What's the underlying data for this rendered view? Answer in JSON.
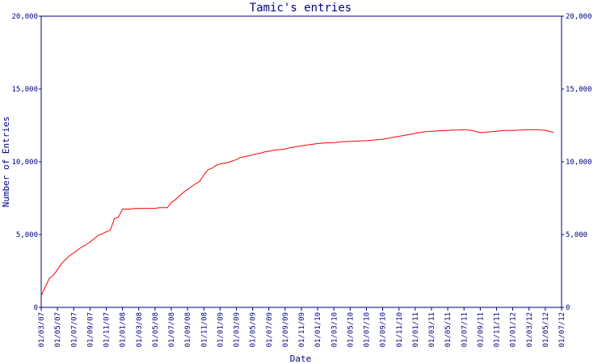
{
  "chart_data": {
    "type": "line",
    "title": "Tamic's entries",
    "xlabel": "Date",
    "ylabel": "Number of Entries",
    "ylim": [
      0,
      20000
    ],
    "y_ticks": [
      0,
      5000,
      10000,
      15000,
      20000
    ],
    "y_tick_labels": [
      "0",
      "5,000",
      "10,000",
      "15,000",
      "20,000"
    ],
    "x_tick_labels": [
      "01/03/07",
      "01/05/07",
      "01/07/07",
      "01/09/07",
      "01/11/07",
      "01/01/08",
      "01/03/08",
      "01/05/08",
      "01/07/08",
      "01/09/08",
      "01/11/08",
      "01/01/09",
      "01/03/09",
      "01/05/09",
      "01/07/09",
      "01/09/09",
      "01/11/09",
      "01/01/10",
      "01/03/10",
      "01/05/10",
      "01/07/10",
      "01/09/10",
      "01/11/10",
      "01/01/11",
      "01/03/11",
      "01/05/11",
      "01/07/11",
      "01/09/11",
      "01/11/11",
      "01/01/12",
      "01/03/12",
      "01/05/12",
      "01/07/12"
    ],
    "x_tick_months": [
      0,
      2,
      4,
      6,
      8,
      10,
      12,
      14,
      16,
      18,
      20,
      22,
      24,
      26,
      28,
      30,
      32,
      34,
      36,
      38,
      40,
      42,
      44,
      46,
      48,
      50,
      52,
      54,
      56,
      58,
      60,
      62,
      64
    ],
    "x_range_months": [
      0,
      64
    ],
    "grid": false,
    "series": [
      {
        "color": "#ff0000",
        "x_months": [
          0,
          0.5,
          1.0,
          1.5,
          2.0,
          2.5,
          3.0,
          3.5,
          4.0,
          4.5,
          5.0,
          5.5,
          6.0,
          6.5,
          7.0,
          7.5,
          8.0,
          8.5,
          9.0,
          9.5,
          10.0,
          10.5,
          11.0,
          11.5,
          12.0,
          12.5,
          13.0,
          13.5,
          14.0,
          14.5,
          15.0,
          15.5,
          16.0,
          16.5,
          17.0,
          17.5,
          18.0,
          18.5,
          19.0,
          19.5,
          20.0,
          20.5,
          21.0,
          21.5,
          22.0,
          22.5,
          23.0,
          23.5,
          24.0,
          24.5,
          25.0,
          25.5,
          26.0,
          26.5,
          27.0,
          27.5,
          28.0,
          28.5,
          29.0,
          29.5,
          30.0,
          30.5,
          31.0,
          31.5,
          32.0,
          33.0,
          34.0,
          35.0,
          36.0,
          37.0,
          38.0,
          39.0,
          40.0,
          41.0,
          42.0,
          43.0,
          44.0,
          45.0,
          46.0,
          47.0,
          48.0,
          49.0,
          50.0,
          51.0,
          52.0,
          53.0,
          54.0,
          55.0,
          56.0,
          57.0,
          58.0,
          59.0,
          60.0,
          61.0,
          62.0,
          62.5,
          63.0
        ],
        "values": [
          800,
          1400,
          2000,
          2200,
          2600,
          3000,
          3300,
          3550,
          3750,
          3950,
          4150,
          4300,
          4500,
          4700,
          4950,
          5050,
          5200,
          5300,
          6100,
          6200,
          6750,
          6750,
          6750,
          6800,
          6800,
          6800,
          6800,
          6800,
          6800,
          6850,
          6850,
          6850,
          7200,
          7400,
          7650,
          7900,
          8100,
          8300,
          8500,
          8650,
          9100,
          9450,
          9550,
          9750,
          9850,
          9900,
          9950,
          10050,
          10150,
          10300,
          10350,
          10400,
          10480,
          10550,
          10600,
          10680,
          10720,
          10780,
          10820,
          10850,
          10880,
          10950,
          11000,
          11050,
          11100,
          11180,
          11250,
          11300,
          11320,
          11370,
          11400,
          11420,
          11450,
          11500,
          11550,
          11650,
          11750,
          11850,
          11950,
          12050,
          12100,
          12120,
          12150,
          12180,
          12200,
          12150,
          12000,
          12050,
          12100,
          12150,
          12150,
          12180,
          12200,
          12200,
          12150,
          12100,
          12000
        ]
      }
    ]
  }
}
